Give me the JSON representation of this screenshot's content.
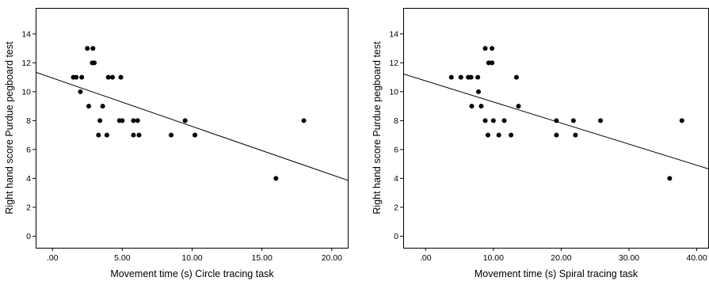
{
  "chart_data": [
    {
      "type": "scatter",
      "title": "",
      "xlabel": "Movement time (s) Circle tracing task",
      "ylabel": "Right hand score Purdue pegboard test",
      "xlim": [
        -1.2,
        21.2
      ],
      "ylim": [
        -0.8,
        15.8
      ],
      "x_ticks": [
        0,
        5,
        10,
        15,
        20
      ],
      "x_tick_labels": [
        ".00",
        "5.00",
        "10.00",
        "15.00",
        "20.00"
      ],
      "y_ticks": [
        0,
        2,
        4,
        6,
        8,
        10,
        12,
        14
      ],
      "y_tick_labels": [
        "0",
        "2",
        "4",
        "6",
        "8",
        "10",
        "12",
        "14"
      ],
      "grid": false,
      "points": [
        {
          "x": 1.5,
          "y": 11
        },
        {
          "x": 1.7,
          "y": 11
        },
        {
          "x": 2.1,
          "y": 11
        },
        {
          "x": 2.0,
          "y": 10
        },
        {
          "x": 2.5,
          "y": 13
        },
        {
          "x": 2.9,
          "y": 13
        },
        {
          "x": 2.85,
          "y": 12
        },
        {
          "x": 3.0,
          "y": 12
        },
        {
          "x": 2.6,
          "y": 9
        },
        {
          "x": 3.6,
          "y": 9
        },
        {
          "x": 3.4,
          "y": 8
        },
        {
          "x": 3.3,
          "y": 7
        },
        {
          "x": 3.9,
          "y": 7
        },
        {
          "x": 4.0,
          "y": 11
        },
        {
          "x": 4.3,
          "y": 11
        },
        {
          "x": 4.9,
          "y": 11
        },
        {
          "x": 4.8,
          "y": 8
        },
        {
          "x": 5.0,
          "y": 8
        },
        {
          "x": 5.8,
          "y": 8
        },
        {
          "x": 6.1,
          "y": 8
        },
        {
          "x": 5.8,
          "y": 7
        },
        {
          "x": 6.2,
          "y": 7
        },
        {
          "x": 8.5,
          "y": 7
        },
        {
          "x": 9.5,
          "y": 8
        },
        {
          "x": 10.2,
          "y": 7
        },
        {
          "x": 16.0,
          "y": 4
        },
        {
          "x": 18.0,
          "y": 8
        }
      ],
      "fit_line": {
        "intercept": 10.95,
        "slope": -0.335
      }
    },
    {
      "type": "scatter",
      "title": "",
      "xlabel": "Movement time (s) Spiral tracing task",
      "ylabel": "Right hand score Purdue pegboard test",
      "xlim": [
        -3.3,
        41.8
      ],
      "ylim": [
        -0.8,
        15.8
      ],
      "x_ticks": [
        0,
        10,
        20,
        30,
        40
      ],
      "x_tick_labels": [
        ".00",
        "10.00",
        "20.00",
        "30.00",
        "40.00"
      ],
      "y_ticks": [
        0,
        2,
        4,
        6,
        8,
        10,
        12,
        14
      ],
      "y_tick_labels": [
        "0",
        "2",
        "4",
        "6",
        "8",
        "10",
        "12",
        "14"
      ],
      "grid": false,
      "points": [
        {
          "x": 3.8,
          "y": 11
        },
        {
          "x": 5.2,
          "y": 11
        },
        {
          "x": 6.3,
          "y": 11
        },
        {
          "x": 6.7,
          "y": 11
        },
        {
          "x": 7.7,
          "y": 11
        },
        {
          "x": 6.8,
          "y": 9
        },
        {
          "x": 8.2,
          "y": 9
        },
        {
          "x": 7.8,
          "y": 10
        },
        {
          "x": 8.8,
          "y": 13
        },
        {
          "x": 9.8,
          "y": 13
        },
        {
          "x": 9.3,
          "y": 12
        },
        {
          "x": 9.8,
          "y": 12
        },
        {
          "x": 8.8,
          "y": 8
        },
        {
          "x": 10.0,
          "y": 8
        },
        {
          "x": 11.6,
          "y": 8
        },
        {
          "x": 9.2,
          "y": 7
        },
        {
          "x": 10.8,
          "y": 7
        },
        {
          "x": 12.6,
          "y": 7
        },
        {
          "x": 13.4,
          "y": 11
        },
        {
          "x": 13.7,
          "y": 9
        },
        {
          "x": 19.3,
          "y": 8
        },
        {
          "x": 19.3,
          "y": 7
        },
        {
          "x": 21.8,
          "y": 8
        },
        {
          "x": 22.1,
          "y": 7
        },
        {
          "x": 25.8,
          "y": 8
        },
        {
          "x": 36.0,
          "y": 4
        },
        {
          "x": 37.8,
          "y": 8
        }
      ],
      "fit_line": {
        "intercept": 10.75,
        "slope": -0.146
      }
    }
  ]
}
